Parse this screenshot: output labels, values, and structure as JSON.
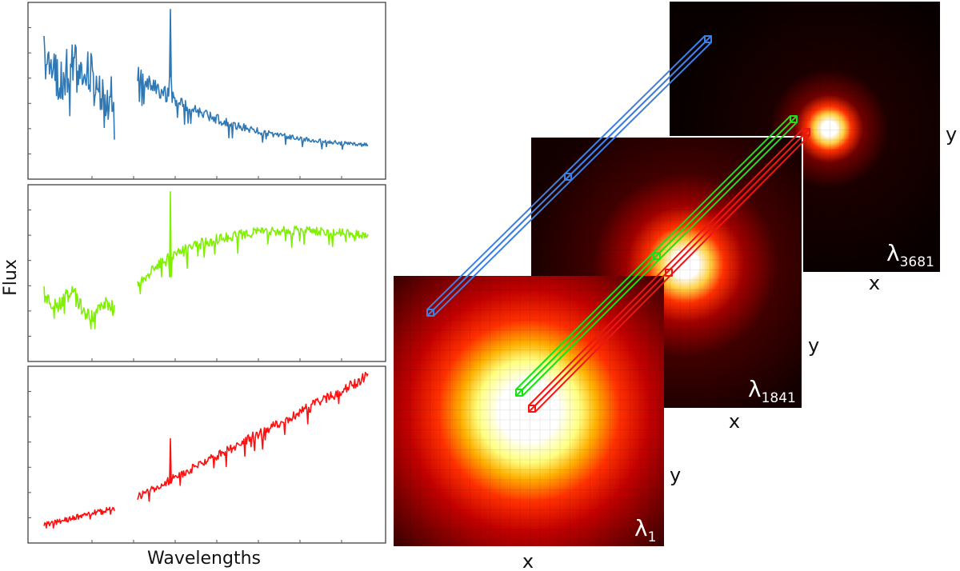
{
  "spectra": {
    "ylabel": "Flux",
    "xlabel": "Wavelengths",
    "series": [
      {
        "color": "#2e78b5",
        "shape": "decreasing"
      },
      {
        "color": "#7ff000",
        "shape": "flat"
      },
      {
        "color": "#ff1010",
        "shape": "increasing"
      }
    ]
  },
  "cube": {
    "slices": [
      {
        "symbol": "λ",
        "subscript": "3681",
        "xlabel": "x",
        "ylabel": "y",
        "blob_spread": "narrow"
      },
      {
        "symbol": "λ",
        "subscript": "1841",
        "xlabel": "x",
        "ylabel": "y",
        "blob_spread": "medium"
      },
      {
        "symbol": "λ",
        "subscript": "1",
        "xlabel": "x",
        "ylabel": "y",
        "blob_spread": "wide"
      }
    ],
    "pixel_columns": [
      {
        "color": "#3f7fe0",
        "links_to": "top spectrum"
      },
      {
        "color": "#19e019",
        "links_to": "middle spectrum"
      },
      {
        "color": "#ee1515",
        "links_to": "bottom spectrum"
      }
    ]
  }
}
